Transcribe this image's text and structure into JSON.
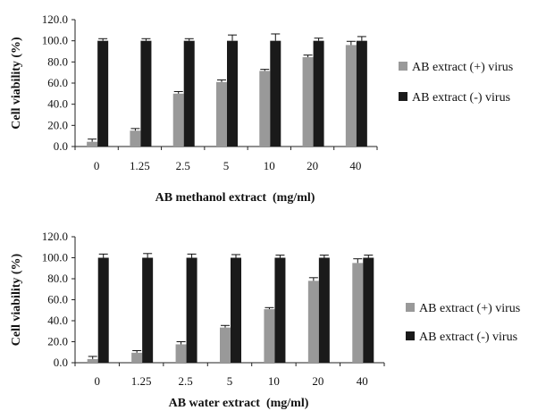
{
  "chart_data": [
    {
      "type": "bar",
      "xlabel": "AB methanol extract  (mg/ml)",
      "ylabel": "Cell viability (%)",
      "ylim": [
        0,
        120
      ],
      "yticks": [
        "0.0",
        "20.0",
        "40.0",
        "60.0",
        "80.0",
        "100.0",
        "120.0"
      ],
      "categories": [
        "0",
        "1.25",
        "2.5",
        "5",
        "10",
        "20",
        "40"
      ],
      "legend_position": "right",
      "series": [
        {
          "name": "AB extract (+) virus",
          "color": "#999999",
          "values": [
            4.5,
            15,
            50,
            61,
            71.5,
            84.5,
            96
          ],
          "errors": [
            2.5,
            2,
            2,
            2,
            1.5,
            2,
            3.5
          ]
        },
        {
          "name": "AB extract (-) virus",
          "color": "#1a1a1a",
          "values": [
            100,
            100,
            100,
            100,
            100,
            100,
            100
          ],
          "errors": [
            2,
            2,
            2,
            5.5,
            6.5,
            2.5,
            4
          ]
        }
      ]
    },
    {
      "type": "bar",
      "xlabel": "AB water extract  (mg/ml)",
      "ylabel": "Cell viability (%)",
      "ylim": [
        0,
        120
      ],
      "yticks": [
        "0.0",
        "20.0",
        "40.0",
        "60.0",
        "80.0",
        "100.0",
        "120.0"
      ],
      "categories": [
        "0",
        "1.25",
        "2.5",
        "5",
        "10",
        "20",
        "40"
      ],
      "legend_position": "right",
      "series": [
        {
          "name": "AB extract (+) virus",
          "color": "#999999",
          "values": [
            3.5,
            9.5,
            17.5,
            33.5,
            51,
            78,
            95
          ],
          "errors": [
            2.5,
            2,
            2.5,
            2,
            1.5,
            3,
            4
          ]
        },
        {
          "name": "AB extract (-) virus",
          "color": "#1a1a1a",
          "values": [
            100,
            100,
            100,
            100,
            100,
            100,
            100
          ],
          "errors": [
            3.5,
            4,
            3.5,
            3,
            2.5,
            2.5,
            2.5
          ]
        }
      ]
    }
  ]
}
